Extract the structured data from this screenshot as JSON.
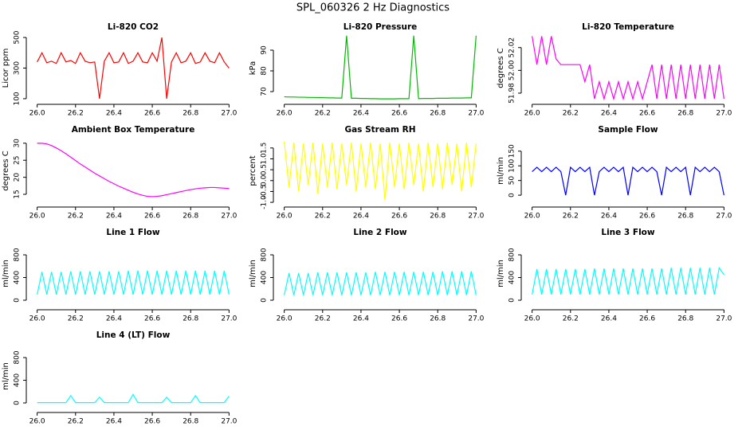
{
  "title": "SPL_060326  2 Hz Diagnostics",
  "chart_data": [
    {
      "type": "line",
      "title": "Li-820 CO2",
      "ylabel": "Licor ppm",
      "color": "#ff0000",
      "x": [
        26,
        26.025,
        26.05,
        26.075,
        26.1,
        26.125,
        26.15,
        26.175,
        26.2,
        26.225,
        26.25,
        26.275,
        26.3,
        26.325,
        26.35,
        26.375,
        26.4,
        26.425,
        26.45,
        26.475,
        26.5,
        26.525,
        26.55,
        26.575,
        26.6,
        26.625,
        26.65,
        26.675,
        26.7,
        26.725,
        26.75,
        26.775,
        26.8,
        26.825,
        26.85,
        26.875,
        26.9,
        26.925,
        26.95,
        26.975,
        27
      ],
      "values": [
        340,
        400,
        335,
        345,
        330,
        400,
        340,
        350,
        330,
        400,
        345,
        335,
        340,
        100,
        345,
        400,
        335,
        340,
        400,
        330,
        345,
        400,
        340,
        335,
        400,
        345,
        500,
        100,
        340,
        400,
        335,
        345,
        400,
        330,
        340,
        400,
        345,
        335,
        400,
        340,
        300
      ],
      "xlim": [
        25.96,
        27.04
      ],
      "xticks": [
        {
          "value": 26,
          "label": "26.0"
        },
        26.2,
        26.4,
        26.6,
        26.8,
        {
          "value": 27,
          "label": "27.0"
        }
      ],
      "ylim": [
        84,
        516
      ],
      "yticks": [
        100,
        300,
        500
      ]
    },
    {
      "type": "line",
      "title": "Li-820 Pressure",
      "ylabel": "kPa",
      "color": "#00bb00",
      "x": [
        26,
        26.025,
        26.05,
        26.075,
        26.1,
        26.125,
        26.15,
        26.175,
        26.2,
        26.225,
        26.25,
        26.275,
        26.3,
        26.325,
        26.35,
        26.375,
        26.4,
        26.425,
        26.45,
        26.475,
        26.5,
        26.525,
        26.55,
        26.575,
        26.6,
        26.625,
        26.65,
        26.675,
        26.7,
        26.725,
        26.75,
        26.775,
        26.8,
        26.825,
        26.85,
        26.875,
        26.9,
        26.925,
        26.95,
        26.975,
        27
      ],
      "values": [
        67.5,
        67.4,
        67.4,
        67.3,
        67.3,
        67.2,
        67.2,
        67.1,
        67.1,
        67.0,
        67.0,
        66.9,
        66.9,
        97,
        66.8,
        66.8,
        66.7,
        66.7,
        66.6,
        66.6,
        66.5,
        66.5,
        66.5,
        66.5,
        66.6,
        66.6,
        66.6,
        97,
        66.6,
        66.7,
        66.7,
        66.7,
        66.8,
        66.8,
        66.8,
        66.9,
        66.9,
        66.9,
        67.0,
        67.0,
        97
      ],
      "xlim": [
        25.96,
        27.04
      ],
      "xticks": [
        {
          "value": 26,
          "label": "26.0"
        },
        26.2,
        26.4,
        26.6,
        26.8,
        {
          "value": 27,
          "label": "27.0"
        }
      ],
      "ylim": [
        65.4,
        97.3
      ],
      "yticks": [
        70,
        80,
        90
      ]
    },
    {
      "type": "line",
      "title": "Li-820 Temperature",
      "ylabel": "degrees C",
      "color": "#ff00ff",
      "x": [
        26,
        26.025,
        26.05,
        26.075,
        26.1,
        26.125,
        26.15,
        26.175,
        26.2,
        26.225,
        26.25,
        26.275,
        26.3,
        26.325,
        26.35,
        26.375,
        26.4,
        26.425,
        26.45,
        26.475,
        26.5,
        26.525,
        26.55,
        26.575,
        26.6,
        26.625,
        26.65,
        26.675,
        26.7,
        26.725,
        26.75,
        26.775,
        26.8,
        26.825,
        26.85,
        26.875,
        26.9,
        26.925,
        26.95,
        26.975,
        27
      ],
      "values": [
        52.03,
        52.005,
        52.03,
        52.005,
        52.03,
        52.01,
        52.005,
        52.005,
        52.005,
        52.005,
        52.005,
        51.99,
        52.005,
        51.975,
        51.99,
        51.975,
        51.99,
        51.975,
        51.99,
        51.975,
        51.99,
        51.975,
        51.99,
        51.975,
        51.99,
        52.005,
        51.975,
        52.005,
        51.975,
        52.005,
        51.975,
        52.005,
        51.975,
        52.005,
        51.975,
        52.005,
        51.975,
        52.005,
        51.975,
        52.005,
        51.975
      ],
      "xlim": [
        25.96,
        27.04
      ],
      "xticks": [
        {
          "value": 26,
          "label": "26.0"
        },
        26.2,
        26.4,
        26.6,
        26.8,
        {
          "value": 27,
          "label": "27.0"
        }
      ],
      "ylim": [
        51.973,
        52.031
      ],
      "yticks": [
        51.98,
        {
          "value": 52,
          "label": "52.00"
        },
        52.02
      ]
    },
    {
      "type": "line",
      "title": "Ambient Box Temperature",
      "ylabel": "degrees C",
      "color": "#ff00ff",
      "x": [
        26,
        26.025,
        26.05,
        26.075,
        26.1,
        26.125,
        26.15,
        26.175,
        26.2,
        26.225,
        26.25,
        26.275,
        26.3,
        26.325,
        26.35,
        26.375,
        26.4,
        26.425,
        26.45,
        26.475,
        26.5,
        26.525,
        26.55,
        26.575,
        26.6,
        26.625,
        26.65,
        26.675,
        26.7,
        26.725,
        26.75,
        26.775,
        26.8,
        26.825,
        26.85,
        26.875,
        26.9,
        26.925,
        26.95,
        26.975,
        27
      ],
      "values": [
        30,
        30,
        29.8,
        29.3,
        28.6,
        27.8,
        26.9,
        25.9,
        24.9,
        23.9,
        23,
        22.1,
        21.2,
        20.4,
        19.6,
        18.8,
        18.1,
        17.4,
        16.8,
        16.2,
        15.6,
        15.1,
        14.7,
        14.4,
        14.3,
        14.4,
        14.6,
        14.9,
        15.2,
        15.5,
        15.8,
        16.1,
        16.4,
        16.6,
        16.8,
        16.9,
        17,
        17,
        16.9,
        16.8,
        16.7
      ],
      "xlim": [
        25.96,
        27.04
      ],
      "xticks": [
        {
          "value": 26,
          "label": "26.0"
        },
        26.2,
        26.4,
        26.6,
        26.8,
        {
          "value": 27,
          "label": "27.0"
        }
      ],
      "ylim": [
        12.2,
        31.6
      ],
      "yticks": [
        15,
        20,
        25,
        30
      ]
    },
    {
      "type": "line",
      "title": "Gas Stream RH",
      "ylabel": "percent",
      "color": "#ffff00",
      "x": [
        26,
        26.025,
        26.05,
        26.075,
        26.1,
        26.125,
        26.15,
        26.175,
        26.2,
        26.225,
        26.25,
        26.275,
        26.3,
        26.325,
        26.35,
        26.375,
        26.4,
        26.425,
        26.45,
        26.475,
        26.5,
        26.525,
        26.55,
        26.575,
        26.6,
        26.625,
        26.65,
        26.675,
        26.7,
        26.725,
        26.75,
        26.775,
        26.8,
        26.825,
        26.85,
        26.875,
        26.9,
        26.925,
        26.95,
        26.975,
        27
      ],
      "values": [
        1.8,
        -0.3,
        1.75,
        -0.5,
        1.7,
        -0.2,
        1.75,
        -0.6,
        1.7,
        -0.3,
        1.75,
        -0.4,
        1.7,
        -0.2,
        1.75,
        -0.5,
        1.7,
        -0.3,
        1.75,
        -0.4,
        1.7,
        -0.9,
        1.75,
        -0.3,
        1.7,
        -0.4,
        1.75,
        -0.2,
        1.7,
        -0.5,
        1.75,
        -0.3,
        1.7,
        -0.4,
        1.75,
        -0.2,
        1.7,
        -0.5,
        1.75,
        -0.3,
        1.7
      ],
      "xlim": [
        25.96,
        27.04
      ],
      "xticks": [
        {
          "value": 26,
          "label": "26.0"
        },
        26.2,
        26.4,
        26.6,
        26.8,
        {
          "value": 27,
          "label": "27.0"
        }
      ],
      "ylim": [
        -1.07,
        1.97
      ],
      "yticks": [
        {
          "value": -1,
          "label": "-1.0"
        },
        -0.5,
        {
          "value": 0,
          "label": "0.0"
        },
        0.5,
        {
          "value": 1,
          "label": "1.0"
        },
        1.5
      ]
    },
    {
      "type": "line",
      "title": "Sample Flow",
      "ylabel": "ml/min",
      "color": "#0000ff",
      "x": [
        26,
        26.025,
        26.05,
        26.075,
        26.1,
        26.125,
        26.15,
        26.175,
        26.2,
        26.225,
        26.25,
        26.275,
        26.3,
        26.325,
        26.35,
        26.375,
        26.4,
        26.425,
        26.45,
        26.475,
        26.5,
        26.525,
        26.55,
        26.575,
        26.6,
        26.625,
        26.65,
        26.675,
        26.7,
        26.725,
        26.75,
        26.775,
        26.8,
        26.825,
        26.85,
        26.875,
        26.9,
        26.925,
        26.95,
        26.975,
        27
      ],
      "values": [
        80,
        95,
        80,
        95,
        80,
        95,
        80,
        0,
        95,
        80,
        95,
        80,
        95,
        0,
        80,
        95,
        80,
        95,
        80,
        95,
        0,
        95,
        80,
        95,
        80,
        95,
        80,
        0,
        95,
        80,
        95,
        80,
        95,
        0,
        95,
        80,
        95,
        80,
        95,
        80,
        0
      ],
      "xlim": [
        25.96,
        27.04
      ],
      "xticks": [
        {
          "value": 26,
          "label": "26.0"
        },
        26.2,
        26.4,
        26.6,
        26.8,
        {
          "value": 27,
          "label": "27.0"
        }
      ],
      "ylim": [
        -29.5,
        195.6
      ],
      "yticks": [
        0,
        50,
        100,
        150
      ]
    },
    {
      "type": "line",
      "title": "Line 1 Flow",
      "ylabel": "ml/min",
      "color": "#00ffff",
      "x": [
        26,
        26.025,
        26.05,
        26.075,
        26.1,
        26.125,
        26.15,
        26.175,
        26.2,
        26.225,
        26.25,
        26.275,
        26.3,
        26.325,
        26.35,
        26.375,
        26.4,
        26.425,
        26.45,
        26.475,
        26.5,
        26.525,
        26.55,
        26.575,
        26.6,
        26.625,
        26.65,
        26.675,
        26.7,
        26.725,
        26.75,
        26.775,
        26.8,
        26.825,
        26.85,
        26.875,
        26.9,
        26.925,
        26.95,
        26.975,
        27
      ],
      "values": [
        100,
        500,
        100,
        500,
        100,
        500,
        100,
        510,
        100,
        510,
        100,
        510,
        100,
        510,
        100,
        510,
        100,
        510,
        100,
        520,
        100,
        520,
        100,
        520,
        100,
        520,
        100,
        520,
        100,
        520,
        100,
        520,
        100,
        520,
        100,
        520,
        100,
        520,
        100,
        520,
        100
      ],
      "xlim": [
        25.96,
        27.04
      ],
      "xticks": [
        {
          "value": 26,
          "label": "26.0"
        },
        26.2,
        26.4,
        26.6,
        26.8,
        {
          "value": 27,
          "label": "27.0"
        }
      ],
      "ylim": [
        -112,
        1053
      ],
      "yticks": [
        0,
        400,
        800
      ]
    },
    {
      "type": "line",
      "title": "Line 2 Flow",
      "ylabel": "ml/min",
      "color": "#00ffff",
      "x": [
        26,
        26.025,
        26.05,
        26.075,
        26.1,
        26.125,
        26.15,
        26.175,
        26.2,
        26.225,
        26.25,
        26.275,
        26.3,
        26.325,
        26.35,
        26.375,
        26.4,
        26.425,
        26.45,
        26.475,
        26.5,
        26.525,
        26.55,
        26.575,
        26.6,
        26.625,
        26.65,
        26.675,
        26.7,
        26.725,
        26.75,
        26.775,
        26.8,
        26.825,
        26.85,
        26.875,
        26.9,
        26.925,
        26.95,
        26.975,
        27
      ],
      "values": [
        90,
        480,
        90,
        480,
        90,
        480,
        90,
        490,
        90,
        490,
        90,
        490,
        90,
        490,
        90,
        490,
        90,
        490,
        90,
        500,
        90,
        500,
        90,
        500,
        90,
        500,
        90,
        500,
        90,
        500,
        90,
        500,
        90,
        510,
        90,
        510,
        90,
        510,
        90,
        510,
        90
      ],
      "xlim": [
        25.96,
        27.04
      ],
      "xticks": [
        {
          "value": 26,
          "label": "26.0"
        },
        26.2,
        26.4,
        26.6,
        26.8,
        {
          "value": 27,
          "label": "27.0"
        }
      ],
      "ylim": [
        -112,
        1053
      ],
      "yticks": [
        0,
        400,
        800
      ]
    },
    {
      "type": "line",
      "title": "Line 3 Flow",
      "ylabel": "ml/min",
      "color": "#00ffff",
      "x": [
        26,
        26.025,
        26.05,
        26.075,
        26.1,
        26.125,
        26.15,
        26.175,
        26.2,
        26.225,
        26.25,
        26.275,
        26.3,
        26.325,
        26.35,
        26.375,
        26.4,
        26.425,
        26.45,
        26.475,
        26.5,
        26.525,
        26.55,
        26.575,
        26.6,
        26.625,
        26.65,
        26.675,
        26.7,
        26.725,
        26.75,
        26.775,
        26.8,
        26.825,
        26.85,
        26.875,
        26.9,
        26.925,
        26.95,
        26.975,
        27
      ],
      "values": [
        100,
        550,
        100,
        550,
        100,
        550,
        100,
        550,
        100,
        550,
        100,
        550,
        100,
        560,
        100,
        560,
        100,
        560,
        100,
        560,
        100,
        560,
        100,
        560,
        100,
        560,
        100,
        560,
        100,
        570,
        100,
        570,
        100,
        570,
        100,
        570,
        100,
        570,
        100,
        570,
        450
      ],
      "xlim": [
        25.96,
        27.04
      ],
      "xticks": [
        {
          "value": 26,
          "label": "26.0"
        },
        26.2,
        26.4,
        26.6,
        26.8,
        {
          "value": 27,
          "label": "27.0"
        }
      ],
      "ylim": [
        -112,
        1053
      ],
      "yticks": [
        0,
        400,
        800
      ]
    },
    {
      "type": "line",
      "title": "Line 4 (LT) Flow",
      "ylabel": "ml/min",
      "color": "#00ffff",
      "x": [
        26,
        26.025,
        26.05,
        26.075,
        26.1,
        26.125,
        26.15,
        26.175,
        26.2,
        26.225,
        26.25,
        26.275,
        26.3,
        26.325,
        26.35,
        26.375,
        26.4,
        26.425,
        26.45,
        26.475,
        26.5,
        26.525,
        26.55,
        26.575,
        26.6,
        26.625,
        26.65,
        26.675,
        26.7,
        26.725,
        26.75,
        26.775,
        26.8,
        26.825,
        26.85,
        26.875,
        26.9,
        26.925,
        26.95,
        26.975,
        27
      ],
      "values": [
        5,
        5,
        5,
        5,
        5,
        5,
        5,
        130,
        5,
        5,
        5,
        5,
        5,
        100,
        5,
        5,
        5,
        5,
        5,
        5,
        150,
        5,
        5,
        5,
        5,
        5,
        5,
        100,
        5,
        5,
        5,
        5,
        5,
        130,
        5,
        5,
        5,
        5,
        5,
        5,
        120
      ],
      "xlim": [
        25.96,
        27.04
      ],
      "xticks": [
        {
          "value": 26,
          "label": "26.0"
        },
        26.2,
        26.4,
        26.6,
        26.8,
        {
          "value": 27,
          "label": "27.0"
        }
      ],
      "ylim": [
        -112,
        1053
      ],
      "yticks": [
        0,
        400,
        800
      ]
    }
  ]
}
